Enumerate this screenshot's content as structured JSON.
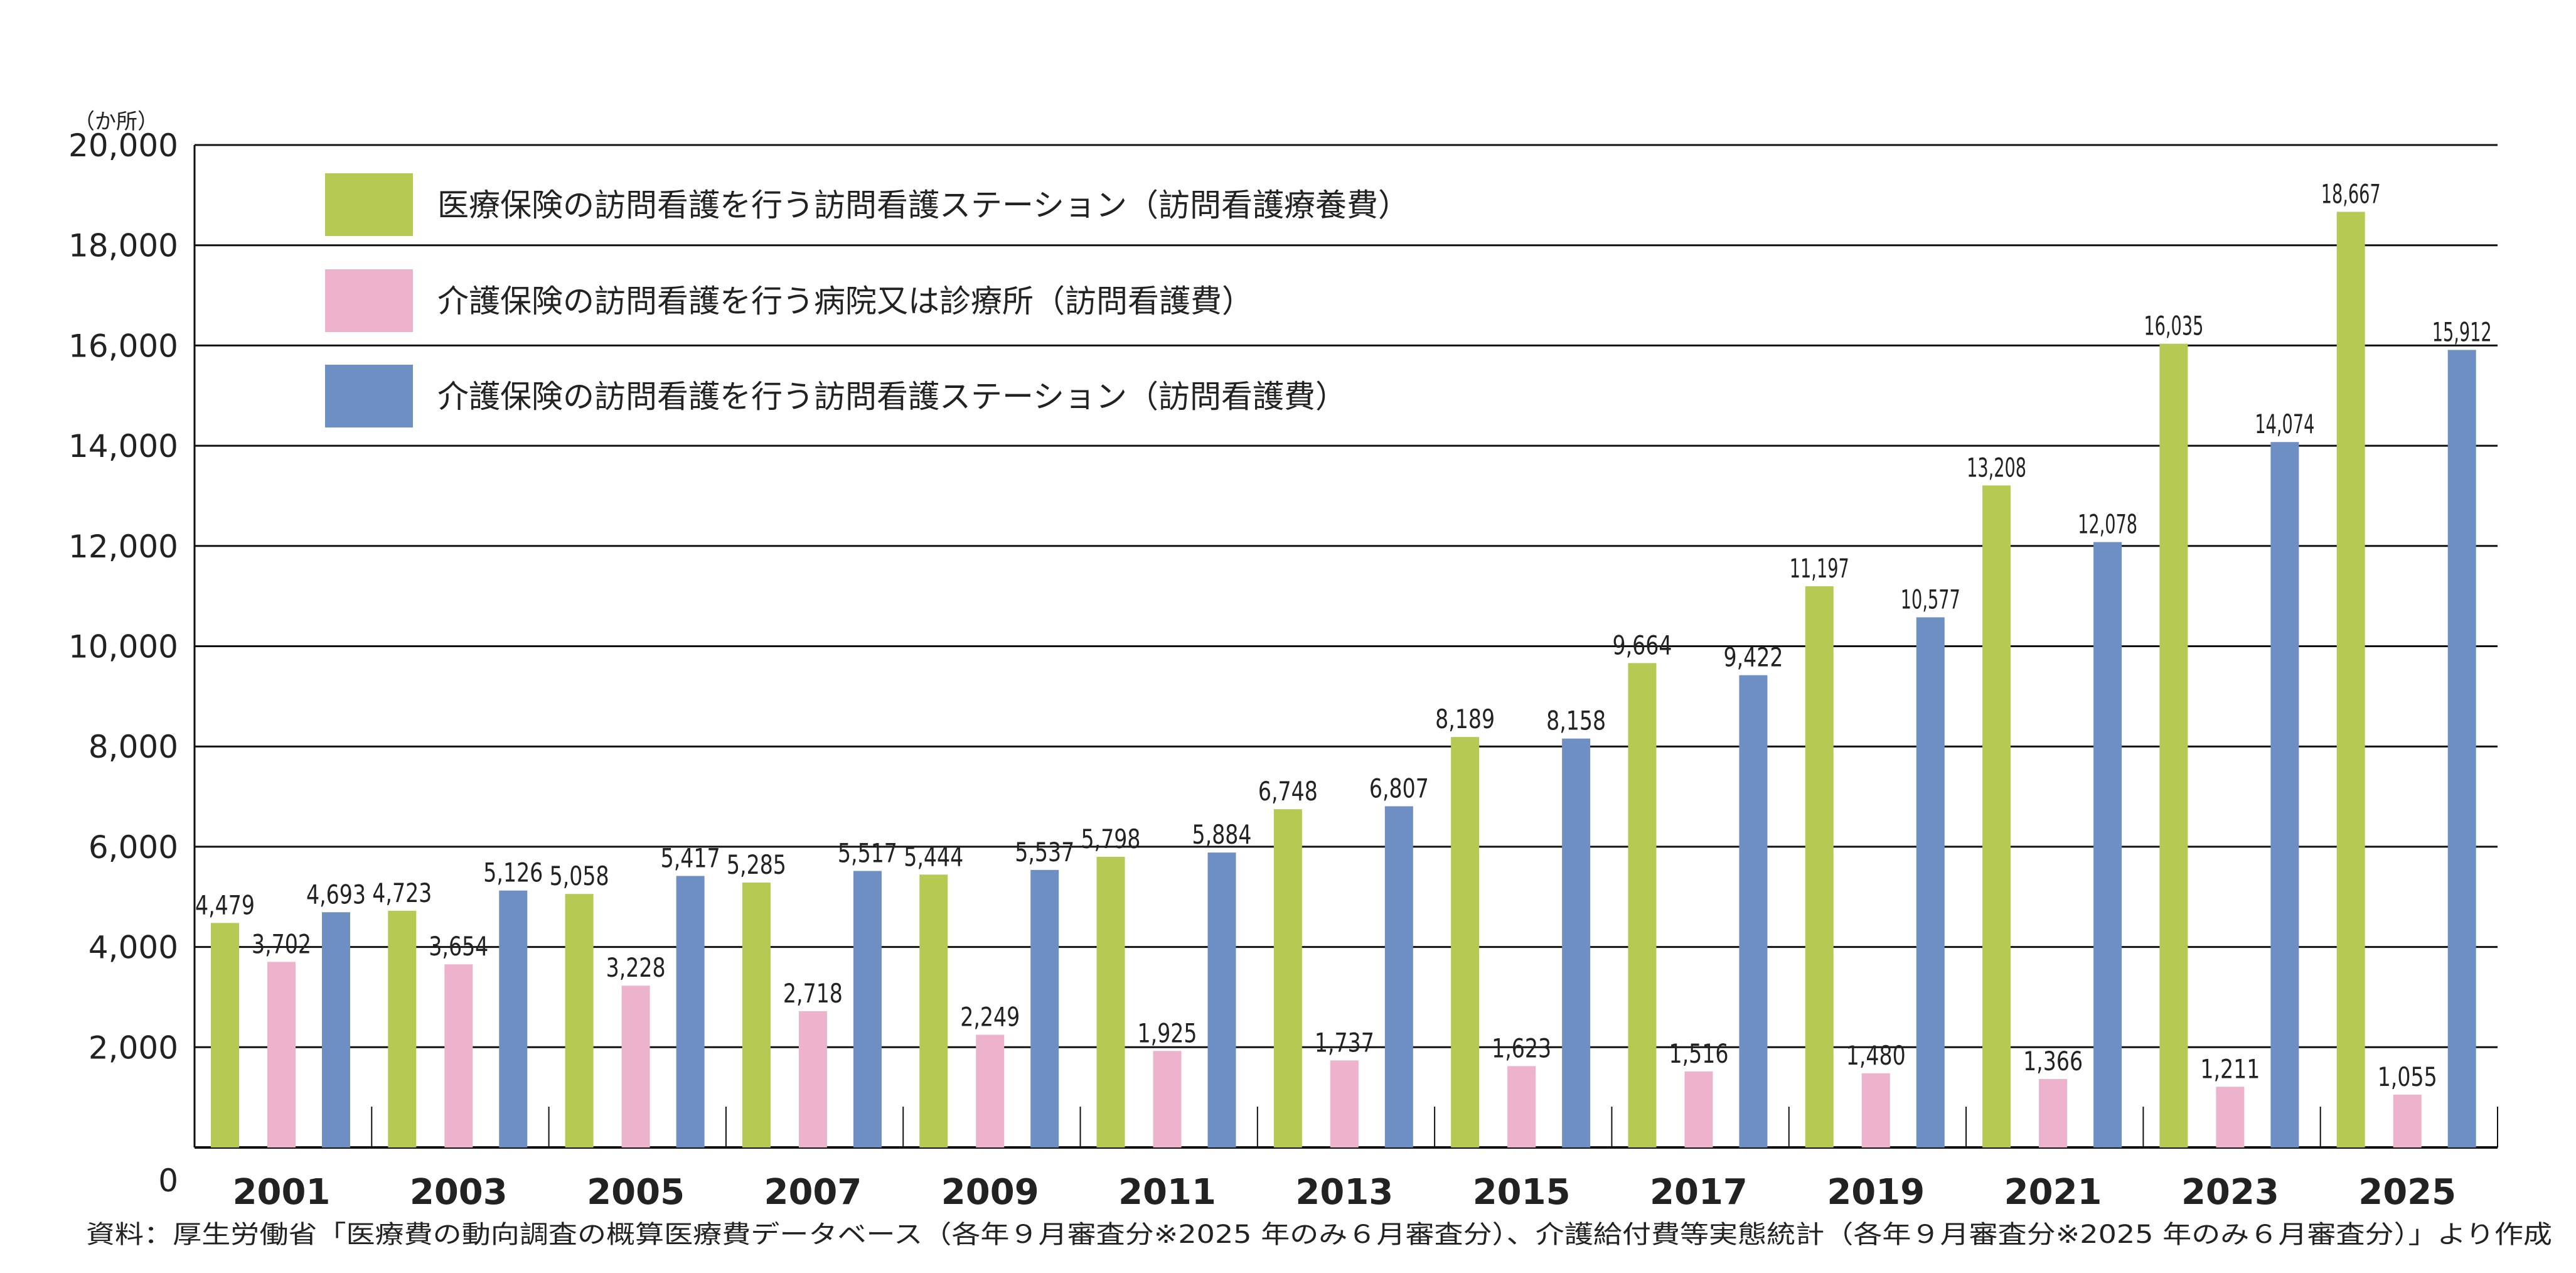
{
  "chart_data": {
    "type": "bar",
    "unit_label": "（か所）",
    "categories": [
      "2001",
      "2003",
      "2005",
      "2007",
      "2009",
      "2011",
      "2013",
      "2015",
      "2017",
      "2019",
      "2021",
      "2023",
      "2025"
    ],
    "series": [
      {
        "name": "医療保険の訪問看護を行う訪問看護ステーション（訪問看護療養費）",
        "color": "#b5c953",
        "values": [
          4479,
          4723,
          5058,
          5285,
          5444,
          5798,
          6748,
          8189,
          9664,
          11197,
          13208,
          16035,
          18667
        ],
        "labels": [
          "4,479",
          "4,723",
          "5,058",
          "5,285",
          "5,444",
          "5,798",
          "6,748",
          "8,189",
          "9,664",
          "11,197",
          "13,208",
          "16,035",
          "18,667"
        ]
      },
      {
        "name": "介護保険の訪問看護を行う病院又は診療所（訪問看護費）",
        "color": "#edb3cc",
        "values": [
          3702,
          3654,
          3228,
          2718,
          2249,
          1925,
          1737,
          1623,
          1516,
          1480,
          1366,
          1211,
          1055
        ],
        "labels": [
          "3,702",
          "3,654",
          "3,228",
          "2,718",
          "2,249",
          "1,925",
          "1,737",
          "1,623",
          "1,516",
          "1,480",
          "1,366",
          "1,211",
          "1,055"
        ]
      },
      {
        "name": "介護保険の訪問看護を行う訪問看護ステーション（訪問看護費）",
        "color": "#6e8fc3",
        "values": [
          4693,
          5126,
          5417,
          5517,
          5537,
          5884,
          6807,
          8158,
          9422,
          10577,
          12078,
          14074,
          15912
        ],
        "labels": [
          "4,693",
          "5,126",
          "5,417",
          "5,517",
          "5,537",
          "5,884",
          "6,807",
          "8,158",
          "9,422",
          "10,577",
          "12,078",
          "14,074",
          "15,912"
        ]
      }
    ],
    "ylim": [
      0,
      20000
    ],
    "yticks": [
      0,
      2000,
      4000,
      6000,
      8000,
      10000,
      12000,
      14000,
      16000,
      18000,
      20000
    ],
    "ytick_labels": [
      "0",
      "2,000",
      "4,000",
      "6,000",
      "8,000",
      "10,000",
      "12,000",
      "14,000",
      "16,000",
      "18,000",
      "20,000"
    ],
    "grid": true,
    "legend_position": "top-left",
    "source_note": "資料：厚生労働省「医療費の動向調査の概算医療費データベース（各年９月審査分※2025 年のみ６月審査分）、介護給付費等実態統計（各年９月審査分※2025 年のみ６月審査分）」より作成"
  }
}
